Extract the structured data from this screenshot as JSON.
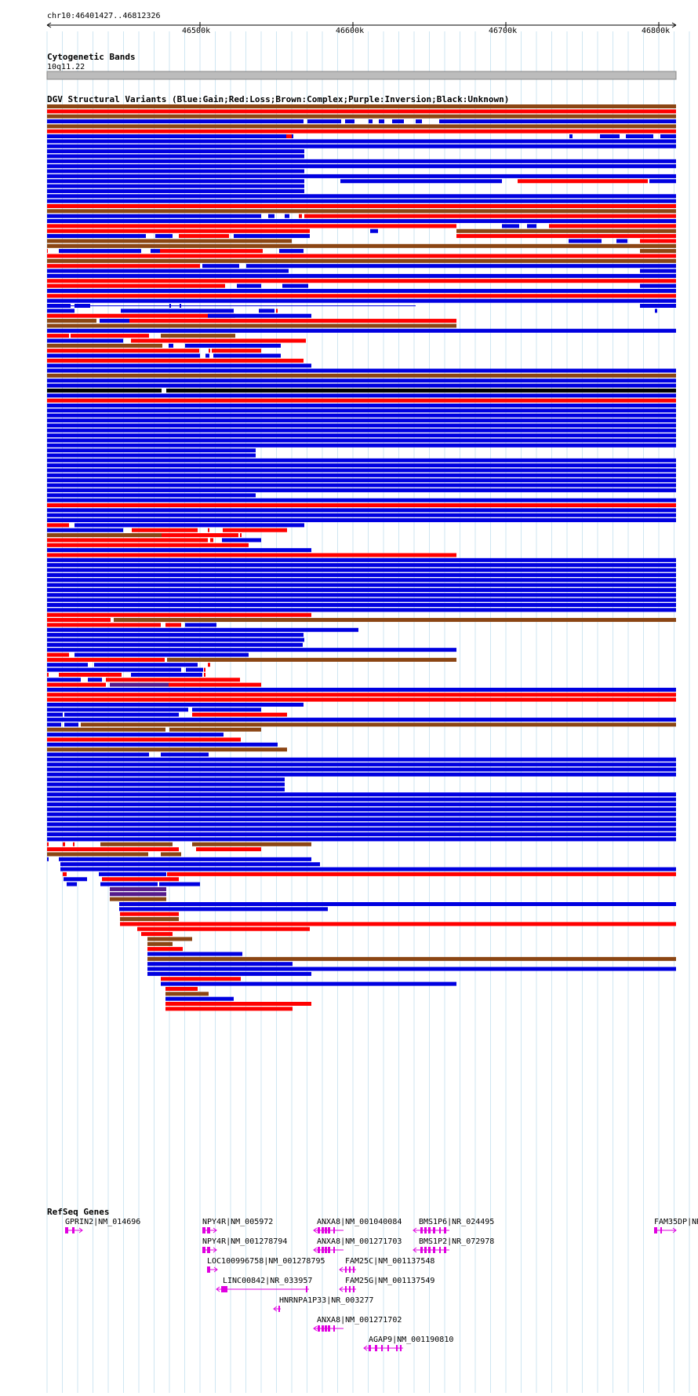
{
  "ruler": {
    "position": "chr10:46401427..46812326",
    "ticks": [
      "46500k",
      "46600k",
      "46700k",
      "46800k"
    ]
  },
  "cytoband": {
    "title": "Cytogenetic Bands",
    "band": "10q11.22"
  },
  "dgv": {
    "title": "DGV Structural Variants (Blue:Gain;Red:Loss;Brown:Complex;Purple:Inversion;Black:Unknown)",
    "colors": {
      "gain": "#0000e0",
      "loss": "#ff0000",
      "complex": "#8b4513",
      "inversion": "#551a8b",
      "unknown": "#000000"
    }
  },
  "refseq": {
    "title": "RefSeq Genes",
    "genes": [
      {
        "label": "GPRIN2|NM_014696",
        "strand": "+"
      },
      {
        "label": "NPY4R|NM_005972",
        "strand": "+"
      },
      {
        "label": "ANXA8|NM_001040084",
        "strand": "-"
      },
      {
        "label": "BMS1P6|NR_024495",
        "strand": "-"
      },
      {
        "label": "FAM35DP|NR",
        "strand": "+"
      },
      {
        "label": "NPY4R|NM_001278794",
        "strand": "+"
      },
      {
        "label": "ANXA8|NM_001271703",
        "strand": "-"
      },
      {
        "label": "BMS1P2|NR_072978",
        "strand": "-"
      },
      {
        "label": "LOC100996758|NM_001278795",
        "strand": "+"
      },
      {
        "label": "FAM25C|NM_001137548",
        "strand": "-"
      },
      {
        "label": "LINC00842|NR_033957",
        "strand": "-"
      },
      {
        "label": "FAM25G|NM_001137549",
        "strand": "-"
      },
      {
        "label": "HNRNPA1P33|NR_003277",
        "strand": "-"
      },
      {
        "label": "ANXA8|NM_001271702",
        "strand": "-"
      },
      {
        "label": "AGAP9|NM_001190810",
        "strand": "-"
      }
    ]
  }
}
